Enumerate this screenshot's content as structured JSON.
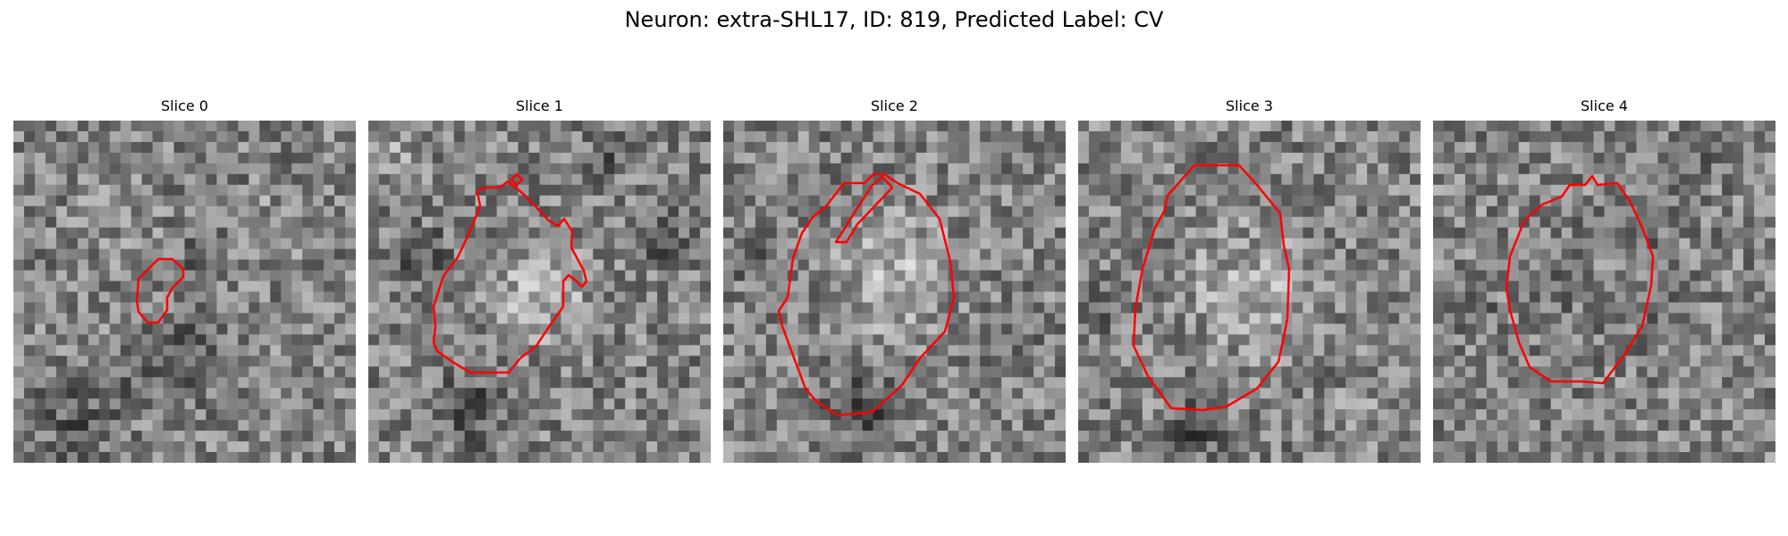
{
  "figure": {
    "title": "Neuron: extra-SHL17, ID: 819, Predicted Label: CV",
    "contour_color": "#ff0000",
    "panels": [
      {
        "title": "Slice 0"
      },
      {
        "title": "Slice 1"
      },
      {
        "title": "Slice 2"
      },
      {
        "title": "Slice 3"
      },
      {
        "title": "Slice 4"
      }
    ]
  }
}
